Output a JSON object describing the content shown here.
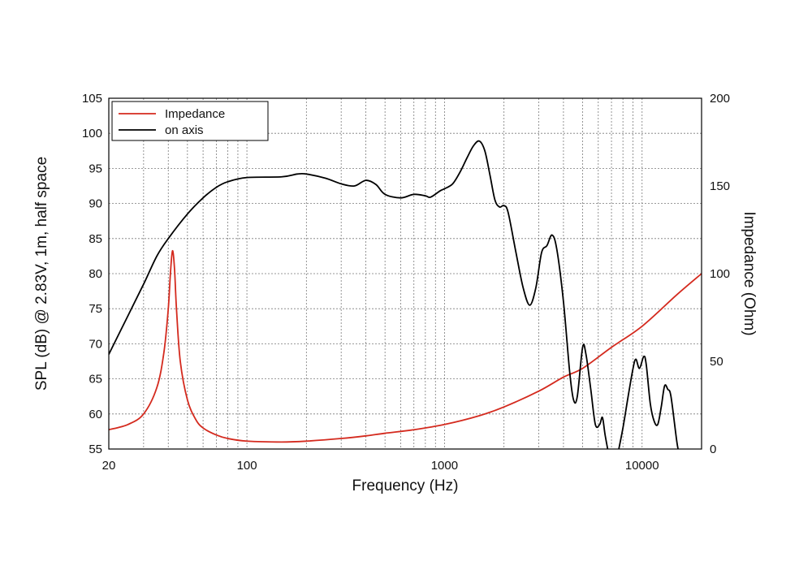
{
  "chart_data": {
    "type": "line",
    "title": "",
    "xlabel": "Frequency (Hz)",
    "ylabel_left": "SPL (dB) @ 2.83V, 1m, half space",
    "ylabel_right": "Impedance (Ohm)",
    "x_scale": "log",
    "xlim": [
      20,
      20000
    ],
    "ylim_left": [
      55,
      105
    ],
    "ylim_right": [
      0,
      200
    ],
    "x_tick_labels": [
      "20",
      "100",
      "1000",
      "10000"
    ],
    "x_ticks": [
      20,
      100,
      1000,
      10000
    ],
    "y_left_tick_labels": [
      "55",
      "60",
      "65",
      "70",
      "75",
      "80",
      "85",
      "90",
      "95",
      "100",
      "105"
    ],
    "y_left_ticks": [
      55,
      60,
      65,
      70,
      75,
      80,
      85,
      90,
      95,
      100,
      105
    ],
    "y_right_tick_labels": [
      "0",
      "50",
      "100",
      "150",
      "200"
    ],
    "y_right_ticks": [
      0,
      50,
      100,
      150,
      200
    ],
    "grid": true,
    "legend_position": "top-left",
    "colors": {
      "impedance": "#d42a1e",
      "on_axis": "#000000",
      "grid": "#7a7a7a"
    },
    "series": [
      {
        "name": "Impedance",
        "axis": "right",
        "color": "#d42a1e",
        "points": [
          [
            20,
            11
          ],
          [
            25,
            14
          ],
          [
            30,
            20
          ],
          [
            35,
            35
          ],
          [
            38,
            55
          ],
          [
            40,
            80
          ],
          [
            41,
            100
          ],
          [
            42,
            113
          ],
          [
            43,
            103
          ],
          [
            44,
            80
          ],
          [
            46,
            50
          ],
          [
            50,
            28
          ],
          [
            55,
            17
          ],
          [
            60,
            12
          ],
          [
            70,
            8
          ],
          [
            80,
            6
          ],
          [
            100,
            4.5
          ],
          [
            150,
            4
          ],
          [
            200,
            4.5
          ],
          [
            300,
            6
          ],
          [
            400,
            7.5
          ],
          [
            500,
            9
          ],
          [
            700,
            11
          ],
          [
            1000,
            14
          ],
          [
            1500,
            19
          ],
          [
            2000,
            24
          ],
          [
            3000,
            33
          ],
          [
            4000,
            41
          ],
          [
            5000,
            46
          ],
          [
            7000,
            58
          ],
          [
            10000,
            70
          ],
          [
            15000,
            88
          ],
          [
            20000,
            100
          ]
        ]
      },
      {
        "name": "on axis",
        "axis": "left",
        "color": "#000000",
        "points": [
          [
            20,
            68.5
          ],
          [
            25,
            74
          ],
          [
            30,
            78.5
          ],
          [
            35,
            82.5
          ],
          [
            40,
            85
          ],
          [
            50,
            88.5
          ],
          [
            60,
            90.8
          ],
          [
            70,
            92.3
          ],
          [
            80,
            93.1
          ],
          [
            100,
            93.7
          ],
          [
            150,
            93.8
          ],
          [
            180,
            94.2
          ],
          [
            200,
            94.2
          ],
          [
            250,
            93.6
          ],
          [
            300,
            92.8
          ],
          [
            350,
            92.5
          ],
          [
            400,
            93.3
          ],
          [
            450,
            92.7
          ],
          [
            500,
            91.3
          ],
          [
            600,
            90.8
          ],
          [
            700,
            91.3
          ],
          [
            800,
            91.1
          ],
          [
            850,
            90.9
          ],
          [
            950,
            91.8
          ],
          [
            1000,
            92.1
          ],
          [
            1100,
            92.8
          ],
          [
            1200,
            94.5
          ],
          [
            1300,
            96.5
          ],
          [
            1400,
            98.2
          ],
          [
            1500,
            98.9
          ],
          [
            1600,
            97.5
          ],
          [
            1700,
            94
          ],
          [
            1800,
            90.5
          ],
          [
            1900,
            89.5
          ],
          [
            2000,
            89.7
          ],
          [
            2100,
            88.7
          ],
          [
            2300,
            83
          ],
          [
            2500,
            78
          ],
          [
            2700,
            75.5
          ],
          [
            2900,
            78
          ],
          [
            3100,
            83
          ],
          [
            3300,
            84
          ],
          [
            3500,
            85.5
          ],
          [
            3700,
            83.5
          ],
          [
            4000,
            76
          ],
          [
            4300,
            66
          ],
          [
            4500,
            62
          ],
          [
            4700,
            62.5
          ],
          [
            5000,
            69.5
          ],
          [
            5200,
            68.5
          ],
          [
            5500,
            63.5
          ],
          [
            5800,
            58.5
          ],
          [
            6100,
            58.5
          ],
          [
            6300,
            59.5
          ],
          [
            6500,
            57
          ],
          [
            6800,
            54
          ]
        ]
      },
      {
        "name": "",
        "axis": "left",
        "color": "#000000",
        "points": [
          [
            7500,
            54
          ],
          [
            8000,
            58
          ],
          [
            8500,
            62.5
          ],
          [
            9000,
            66.5
          ],
          [
            9300,
            67.8
          ],
          [
            9700,
            66.5
          ],
          [
            10200,
            68.2
          ],
          [
            10500,
            67
          ],
          [
            11000,
            61.5
          ],
          [
            11500,
            59
          ],
          [
            12000,
            58.5
          ],
          [
            12500,
            61
          ],
          [
            13000,
            64
          ],
          [
            13500,
            63.5
          ],
          [
            14000,
            62.5
          ],
          [
            15000,
            56
          ],
          [
            15500,
            54
          ]
        ]
      }
    ]
  }
}
